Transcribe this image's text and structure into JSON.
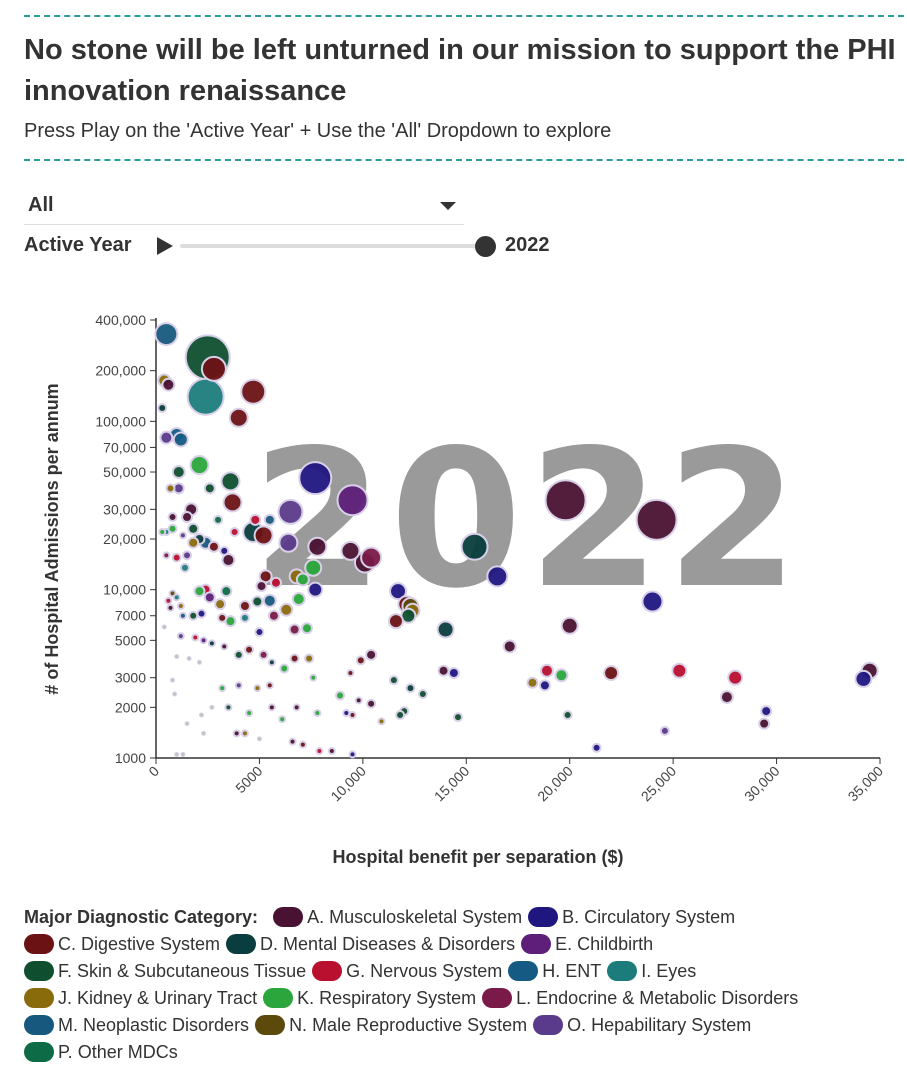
{
  "header": {
    "title": "No stone will be left unturned in our mission to support the PHI innovation renaissance",
    "subtitle": "Press Play on the 'Active Year' + Use the 'All' Dropdown to explore"
  },
  "controls": {
    "dropdown_value": "All",
    "active_year_label": "Active Year",
    "year_value": "2022",
    "year_fraction": 1.0
  },
  "chart_data": {
    "type": "scatter",
    "subtype": "bubble",
    "title": "",
    "watermark": "2022",
    "xlabel": "Hospital benefit per separation ($)",
    "ylabel": "# of Hospital Admissions per annum",
    "xlim": [
      0,
      35000
    ],
    "ylim": [
      1000,
      400000
    ],
    "yscale": "log",
    "x_ticks": [
      0,
      5000,
      10000,
      15000,
      20000,
      25000,
      30000,
      35000
    ],
    "x_tick_labels": [
      "0",
      "5000",
      "10,000",
      "15,000",
      "20,000",
      "25,000",
      "30,000",
      "35,000"
    ],
    "y_ticks": [
      1000,
      2000,
      3000,
      5000,
      7000,
      10000,
      20000,
      30000,
      50000,
      70000,
      100000,
      200000,
      400000
    ],
    "y_tick_labels": [
      "1000",
      "2000",
      "3000",
      "5000",
      "7000",
      "10,000",
      "20,000",
      "30,000",
      "50,000",
      "70,000",
      "100,000",
      "200,000",
      "400,000"
    ],
    "legend_title": "Major Diagnostic Category:",
    "categories": [
      {
        "id": "A",
        "name": "A. Musculoskeletal System",
        "color": "#4a1232"
      },
      {
        "id": "B",
        "name": "B. Circulatory System",
        "color": "#1f1680"
      },
      {
        "id": "C",
        "name": "C. Digestive System",
        "color": "#6b1215"
      },
      {
        "id": "D",
        "name": "D. Mental Diseases & Disorders",
        "color": "#0a3d3d"
      },
      {
        "id": "E",
        "name": "E. Childbirth",
        "color": "#5e1f7a"
      },
      {
        "id": "F",
        "name": "F. Skin & Subcutaneous Tissue",
        "color": "#0f4f2f"
      },
      {
        "id": "G",
        "name": "G. Nervous System",
        "color": "#b8102e"
      },
      {
        "id": "H",
        "name": "H. ENT",
        "color": "#155a82"
      },
      {
        "id": "I",
        "name": "I. Eyes",
        "color": "#1c7c7c"
      },
      {
        "id": "J",
        "name": "J. Kidney & Urinary Tract",
        "color": "#8a6b0c"
      },
      {
        "id": "K",
        "name": "K. Respiratory System",
        "color": "#2aa63c"
      },
      {
        "id": "L",
        "name": "L. Endocrine & Metabolic Disorders",
        "color": "#7a1a48"
      },
      {
        "id": "M",
        "name": "M. Neoplastic Disorders",
        "color": "#17597e"
      },
      {
        "id": "N",
        "name": "N. Male Reproductive System",
        "color": "#5b4a0c"
      },
      {
        "id": "O",
        "name": "O. Hepabilitary System",
        "color": "#5a3a8a"
      },
      {
        "id": "P",
        "name": "P. Other MDCs",
        "color": "#0d6b45"
      }
    ],
    "points": [
      {
        "x": 2500,
        "y": 240000,
        "r": 22,
        "cat": "F"
      },
      {
        "x": 500,
        "y": 330000,
        "r": 11,
        "cat": "M"
      },
      {
        "x": 2800,
        "y": 205000,
        "r": 12,
        "cat": "C"
      },
      {
        "x": 2400,
        "y": 140000,
        "r": 18,
        "cat": "I"
      },
      {
        "x": 4700,
        "y": 150000,
        "r": 12,
        "cat": "C"
      },
      {
        "x": 4000,
        "y": 105000,
        "r": 9,
        "cat": "C"
      },
      {
        "x": 400,
        "y": 175000,
        "r": 6,
        "cat": "J"
      },
      {
        "x": 600,
        "y": 165000,
        "r": 6,
        "cat": "A"
      },
      {
        "x": 300,
        "y": 120000,
        "r": 4,
        "cat": "D"
      },
      {
        "x": 1000,
        "y": 83000,
        "r": 7,
        "cat": "H"
      },
      {
        "x": 1200,
        "y": 78000,
        "r": 7,
        "cat": "H"
      },
      {
        "x": 500,
        "y": 80000,
        "r": 6,
        "cat": "O"
      },
      {
        "x": 2100,
        "y": 55000,
        "r": 9,
        "cat": "K"
      },
      {
        "x": 1100,
        "y": 50000,
        "r": 6,
        "cat": "F"
      },
      {
        "x": 3600,
        "y": 44000,
        "r": 9,
        "cat": "F"
      },
      {
        "x": 7700,
        "y": 46000,
        "r": 16,
        "cat": "B"
      },
      {
        "x": 2600,
        "y": 40000,
        "r": 5,
        "cat": "F"
      },
      {
        "x": 1100,
        "y": 40000,
        "r": 5,
        "cat": "O"
      },
      {
        "x": 700,
        "y": 40000,
        "r": 4,
        "cat": "J"
      },
      {
        "x": 9500,
        "y": 34000,
        "r": 15,
        "cat": "E"
      },
      {
        "x": 3700,
        "y": 33000,
        "r": 9,
        "cat": "C"
      },
      {
        "x": 6500,
        "y": 29000,
        "r": 12,
        "cat": "O"
      },
      {
        "x": 19800,
        "y": 34000,
        "r": 20,
        "cat": "A"
      },
      {
        "x": 24200,
        "y": 26000,
        "r": 20,
        "cat": "A"
      },
      {
        "x": 1700,
        "y": 30000,
        "r": 6,
        "cat": "A"
      },
      {
        "x": 1500,
        "y": 27000,
        "r": 5,
        "cat": "A"
      },
      {
        "x": 800,
        "y": 27000,
        "r": 4,
        "cat": "A"
      },
      {
        "x": 3000,
        "y": 26000,
        "r": 4,
        "cat": "P"
      },
      {
        "x": 4800,
        "y": 26000,
        "r": 5,
        "cat": "G"
      },
      {
        "x": 5500,
        "y": 26000,
        "r": 5,
        "cat": "M"
      },
      {
        "x": 1800,
        "y": 23000,
        "r": 5,
        "cat": "F"
      },
      {
        "x": 800,
        "y": 23000,
        "r": 4,
        "cat": "K"
      },
      {
        "x": 500,
        "y": 22000,
        "r": 3,
        "cat": "I"
      },
      {
        "x": 300,
        "y": 22000,
        "r": 3,
        "cat": "K"
      },
      {
        "x": 4700,
        "y": 22000,
        "r": 10,
        "cat": "D"
      },
      {
        "x": 5200,
        "y": 21000,
        "r": 9,
        "cat": "C"
      },
      {
        "x": 3800,
        "y": 22000,
        "r": 4,
        "cat": "G"
      },
      {
        "x": 1300,
        "y": 21000,
        "r": 3,
        "cat": "O"
      },
      {
        "x": 2100,
        "y": 20000,
        "r": 5,
        "cat": "D"
      },
      {
        "x": 2400,
        "y": 19000,
        "r": 6,
        "cat": "M"
      },
      {
        "x": 1800,
        "y": 19000,
        "r": 5,
        "cat": "J"
      },
      {
        "x": 2800,
        "y": 18000,
        "r": 5,
        "cat": "C"
      },
      {
        "x": 3300,
        "y": 17000,
        "r": 4,
        "cat": "B"
      },
      {
        "x": 6400,
        "y": 19000,
        "r": 9,
        "cat": "O"
      },
      {
        "x": 7800,
        "y": 18000,
        "r": 9,
        "cat": "A"
      },
      {
        "x": 9400,
        "y": 17000,
        "r": 9,
        "cat": "A"
      },
      {
        "x": 10100,
        "y": 14500,
        "r": 10,
        "cat": "A"
      },
      {
        "x": 10400,
        "y": 15500,
        "r": 10,
        "cat": "L"
      },
      {
        "x": 15400,
        "y": 18000,
        "r": 13,
        "cat": "D"
      },
      {
        "x": 16500,
        "y": 12000,
        "r": 10,
        "cat": "B"
      },
      {
        "x": 1500,
        "y": 16000,
        "r": 4,
        "cat": "O"
      },
      {
        "x": 1000,
        "y": 15500,
        "r": 4,
        "cat": "G"
      },
      {
        "x": 500,
        "y": 16000,
        "r": 3,
        "cat": "L"
      },
      {
        "x": 3500,
        "y": 15000,
        "r": 6,
        "cat": "A"
      },
      {
        "x": 1400,
        "y": 13500,
        "r": 4,
        "cat": "I"
      },
      {
        "x": 7600,
        "y": 13500,
        "r": 8,
        "cat": "K"
      },
      {
        "x": 6800,
        "y": 12000,
        "r": 7,
        "cat": "J"
      },
      {
        "x": 7100,
        "y": 11500,
        "r": 6,
        "cat": "K"
      },
      {
        "x": 5300,
        "y": 12000,
        "r": 6,
        "cat": "C"
      },
      {
        "x": 5800,
        "y": 11000,
        "r": 5,
        "cat": "G"
      },
      {
        "x": 5100,
        "y": 10500,
        "r": 5,
        "cat": "A"
      },
      {
        "x": 7700,
        "y": 10000,
        "r": 7,
        "cat": "B"
      },
      {
        "x": 11700,
        "y": 9800,
        "r": 8,
        "cat": "B"
      },
      {
        "x": 12100,
        "y": 8200,
        "r": 8,
        "cat": "C"
      },
      {
        "x": 12300,
        "y": 8000,
        "r": 8,
        "cat": "N"
      },
      {
        "x": 12400,
        "y": 7500,
        "r": 7,
        "cat": "J"
      },
      {
        "x": 12200,
        "y": 7000,
        "r": 7,
        "cat": "F"
      },
      {
        "x": 11600,
        "y": 6500,
        "r": 7,
        "cat": "C"
      },
      {
        "x": 14000,
        "y": 5800,
        "r": 8,
        "cat": "D"
      },
      {
        "x": 24000,
        "y": 8500,
        "r": 10,
        "cat": "B"
      },
      {
        "x": 20000,
        "y": 6100,
        "r": 8,
        "cat": "A"
      },
      {
        "x": 17100,
        "y": 4600,
        "r": 6,
        "cat": "A"
      },
      {
        "x": 2400,
        "y": 10000,
        "r": 5,
        "cat": "G"
      },
      {
        "x": 2100,
        "y": 9800,
        "r": 5,
        "cat": "K"
      },
      {
        "x": 3400,
        "y": 9800,
        "r": 5,
        "cat": "P"
      },
      {
        "x": 4900,
        "y": 8500,
        "r": 5,
        "cat": "F"
      },
      {
        "x": 5500,
        "y": 8600,
        "r": 6,
        "cat": "M"
      },
      {
        "x": 4300,
        "y": 8000,
        "r": 5,
        "cat": "C"
      },
      {
        "x": 3100,
        "y": 8200,
        "r": 5,
        "cat": "J"
      },
      {
        "x": 2600,
        "y": 9000,
        "r": 5,
        "cat": "E"
      },
      {
        "x": 6900,
        "y": 8800,
        "r": 6,
        "cat": "K"
      },
      {
        "x": 6300,
        "y": 7600,
        "r": 6,
        "cat": "J"
      },
      {
        "x": 5700,
        "y": 7000,
        "r": 5,
        "cat": "L"
      },
      {
        "x": 4300,
        "y": 6800,
        "r": 4,
        "cat": "I"
      },
      {
        "x": 3600,
        "y": 6500,
        "r": 5,
        "cat": "K"
      },
      {
        "x": 3200,
        "y": 6800,
        "r": 4,
        "cat": "C"
      },
      {
        "x": 1800,
        "y": 7000,
        "r": 4,
        "cat": "F"
      },
      {
        "x": 2200,
        "y": 7200,
        "r": 4,
        "cat": "B"
      },
      {
        "x": 1200,
        "y": 8000,
        "r": 3,
        "cat": "J"
      },
      {
        "x": 1300,
        "y": 7000,
        "r": 3,
        "cat": "H"
      },
      {
        "x": 800,
        "y": 9500,
        "r": 3,
        "cat": "N"
      },
      {
        "x": 1000,
        "y": 9000,
        "r": 3,
        "cat": "I"
      },
      {
        "x": 600,
        "y": 8600,
        "r": 3,
        "cat": "G"
      },
      {
        "x": 700,
        "y": 7800,
        "r": 3,
        "cat": "A"
      },
      {
        "x": 400,
        "y": 6000,
        "r": 2,
        "cat": "P"
      },
      {
        "x": 5000,
        "y": 5600,
        "r": 4,
        "cat": "B"
      },
      {
        "x": 6700,
        "y": 5800,
        "r": 5,
        "cat": "L"
      },
      {
        "x": 7300,
        "y": 5900,
        "r": 5,
        "cat": "K"
      },
      {
        "x": 2300,
        "y": 5000,
        "r": 3,
        "cat": "E"
      },
      {
        "x": 1900,
        "y": 5200,
        "r": 3,
        "cat": "G"
      },
      {
        "x": 1200,
        "y": 5300,
        "r": 3,
        "cat": "O"
      },
      {
        "x": 2700,
        "y": 4800,
        "r": 3,
        "cat": "D"
      },
      {
        "x": 3300,
        "y": 4600,
        "r": 3,
        "cat": "A"
      },
      {
        "x": 4000,
        "y": 4100,
        "r": 4,
        "cat": "F"
      },
      {
        "x": 4500,
        "y": 4400,
        "r": 4,
        "cat": "C"
      },
      {
        "x": 5200,
        "y": 4100,
        "r": 4,
        "cat": "L"
      },
      {
        "x": 5600,
        "y": 3700,
        "r": 3,
        "cat": "D"
      },
      {
        "x": 6700,
        "y": 3900,
        "r": 4,
        "cat": "C"
      },
      {
        "x": 7400,
        "y": 3900,
        "r": 4,
        "cat": "J"
      },
      {
        "x": 9900,
        "y": 3800,
        "r": 4,
        "cat": "C"
      },
      {
        "x": 10400,
        "y": 4100,
        "r": 5,
        "cat": "A"
      },
      {
        "x": 1000,
        "y": 4000,
        "r": 2,
        "cat": "P"
      },
      {
        "x": 1600,
        "y": 3900,
        "r": 2,
        "cat": "K"
      },
      {
        "x": 2100,
        "y": 3700,
        "r": 2,
        "cat": "H"
      },
      {
        "x": 6200,
        "y": 3400,
        "r": 4,
        "cat": "K"
      },
      {
        "x": 7600,
        "y": 3000,
        "r": 3,
        "cat": "K"
      },
      {
        "x": 9400,
        "y": 3200,
        "r": 3,
        "cat": "C"
      },
      {
        "x": 11500,
        "y": 2900,
        "r": 4,
        "cat": "F"
      },
      {
        "x": 13900,
        "y": 3300,
        "r": 5,
        "cat": "A"
      },
      {
        "x": 14400,
        "y": 3200,
        "r": 5,
        "cat": "B"
      },
      {
        "x": 18900,
        "y": 3300,
        "r": 6,
        "cat": "G"
      },
      {
        "x": 19600,
        "y": 3100,
        "r": 6,
        "cat": "K"
      },
      {
        "x": 22000,
        "y": 3200,
        "r": 7,
        "cat": "C"
      },
      {
        "x": 25300,
        "y": 3300,
        "r": 7,
        "cat": "G"
      },
      {
        "x": 28000,
        "y": 3000,
        "r": 7,
        "cat": "G"
      },
      {
        "x": 18200,
        "y": 2800,
        "r": 5,
        "cat": "J"
      },
      {
        "x": 18800,
        "y": 2700,
        "r": 5,
        "cat": "B"
      },
      {
        "x": 27600,
        "y": 2300,
        "r": 6,
        "cat": "A"
      },
      {
        "x": 34500,
        "y": 3300,
        "r": 8,
        "cat": "A"
      },
      {
        "x": 34200,
        "y": 2950,
        "r": 8,
        "cat": "B"
      },
      {
        "x": 29500,
        "y": 1900,
        "r": 5,
        "cat": "B"
      },
      {
        "x": 29400,
        "y": 1600,
        "r": 5,
        "cat": "A"
      },
      {
        "x": 24600,
        "y": 1450,
        "r": 4,
        "cat": "O"
      },
      {
        "x": 19900,
        "y": 1800,
        "r": 4,
        "cat": "F"
      },
      {
        "x": 21300,
        "y": 1150,
        "r": 4,
        "cat": "B"
      },
      {
        "x": 12300,
        "y": 2600,
        "r": 4,
        "cat": "D"
      },
      {
        "x": 12900,
        "y": 2400,
        "r": 4,
        "cat": "F"
      },
      {
        "x": 12000,
        "y": 1900,
        "r": 4,
        "cat": "F"
      },
      {
        "x": 11800,
        "y": 1800,
        "r": 4,
        "cat": "F"
      },
      {
        "x": 14600,
        "y": 1750,
        "r": 4,
        "cat": "F"
      },
      {
        "x": 8900,
        "y": 2350,
        "r": 4,
        "cat": "K"
      },
      {
        "x": 9800,
        "y": 2200,
        "r": 3,
        "cat": "A"
      },
      {
        "x": 10400,
        "y": 2100,
        "r": 4,
        "cat": "A"
      },
      {
        "x": 9200,
        "y": 1850,
        "r": 3,
        "cat": "B"
      },
      {
        "x": 9500,
        "y": 1800,
        "r": 3,
        "cat": "C"
      },
      {
        "x": 10900,
        "y": 1650,
        "r": 3,
        "cat": "J"
      },
      {
        "x": 7800,
        "y": 1850,
        "r": 3,
        "cat": "K"
      },
      {
        "x": 6800,
        "y": 2000,
        "r": 3,
        "cat": "A"
      },
      {
        "x": 6100,
        "y": 1700,
        "r": 3,
        "cat": "K"
      },
      {
        "x": 5500,
        "y": 2700,
        "r": 3,
        "cat": "C"
      },
      {
        "x": 4900,
        "y": 2600,
        "r": 3,
        "cat": "J"
      },
      {
        "x": 4000,
        "y": 2700,
        "r": 3,
        "cat": "O"
      },
      {
        "x": 3200,
        "y": 2600,
        "r": 3,
        "cat": "K"
      },
      {
        "x": 3500,
        "y": 2000,
        "r": 3,
        "cat": "F"
      },
      {
        "x": 4500,
        "y": 1850,
        "r": 3,
        "cat": "K"
      },
      {
        "x": 5600,
        "y": 2000,
        "r": 3,
        "cat": "A"
      },
      {
        "x": 2700,
        "y": 2000,
        "r": 2,
        "cat": "P"
      },
      {
        "x": 2200,
        "y": 1800,
        "r": 2,
        "cat": "P"
      },
      {
        "x": 1500,
        "y": 1600,
        "r": 2,
        "cat": "P"
      },
      {
        "x": 2300,
        "y": 1400,
        "r": 2,
        "cat": "P"
      },
      {
        "x": 3900,
        "y": 1400,
        "r": 3,
        "cat": "A"
      },
      {
        "x": 4300,
        "y": 1400,
        "r": 3,
        "cat": "J"
      },
      {
        "x": 5000,
        "y": 1300,
        "r": 2,
        "cat": "P"
      },
      {
        "x": 6600,
        "y": 1250,
        "r": 3,
        "cat": "A"
      },
      {
        "x": 7100,
        "y": 1200,
        "r": 3,
        "cat": "C"
      },
      {
        "x": 7900,
        "y": 1100,
        "r": 3,
        "cat": "G"
      },
      {
        "x": 8500,
        "y": 1100,
        "r": 3,
        "cat": "A"
      },
      {
        "x": 9500,
        "y": 1050,
        "r": 3,
        "cat": "B"
      },
      {
        "x": 1000,
        "y": 1050,
        "r": 2,
        "cat": "P"
      },
      {
        "x": 1300,
        "y": 1050,
        "r": 2,
        "cat": "P"
      },
      {
        "x": 800,
        "y": 2900,
        "r": 2,
        "cat": "P"
      },
      {
        "x": 900,
        "y": 2400,
        "r": 2,
        "cat": "P"
      }
    ]
  },
  "legend": {
    "title": "Major Diagnostic Category:"
  }
}
